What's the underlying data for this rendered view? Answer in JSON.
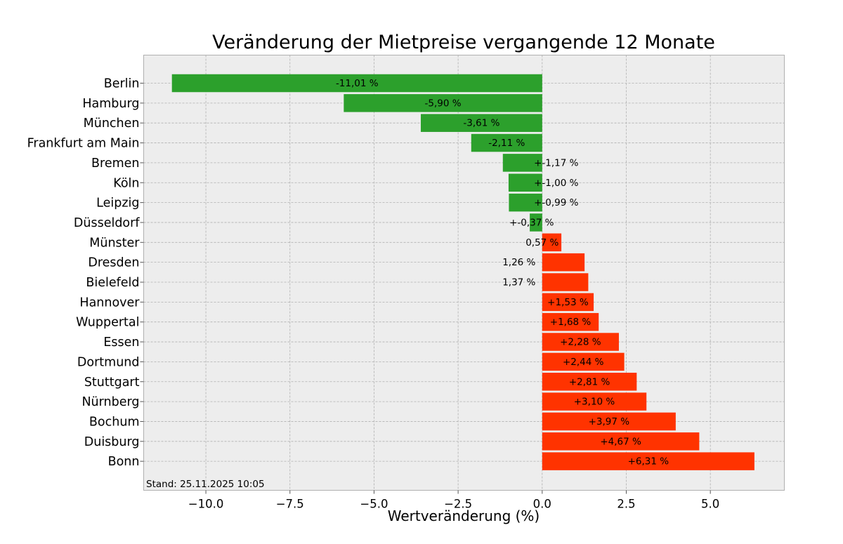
{
  "chart_data": {
    "type": "bar",
    "orientation": "horizontal",
    "title": "Veränderung der Mietpreise vergangende 12 Monate",
    "xlabel": "Wertveränderung (%)",
    "ylabel": "",
    "xlim": [
      -11.85,
      7.2
    ],
    "xticks": [
      -10.0,
      -7.5,
      -5.0,
      -2.5,
      0.0,
      2.5,
      5.0
    ],
    "xtick_labels": [
      "−10.0",
      "−7.5",
      "−5.0",
      "−2.5",
      "0.0",
      "2.5",
      "5.0"
    ],
    "grid": true,
    "categories": [
      "Berlin",
      "Hamburg",
      "München",
      "Frankfurt am Main",
      "Bremen",
      "Köln",
      "Leipzig",
      "Düsseldorf",
      "Münster",
      "Dresden",
      "Bielefeld",
      "Hannover",
      "Wuppertal",
      "Essen",
      "Dortmund",
      "Stuttgart",
      "Nürnberg",
      "Bochum",
      "Duisburg",
      "Bonn"
    ],
    "values": [
      -11.01,
      -5.9,
      -3.61,
      -2.11,
      -1.17,
      -1.0,
      -0.99,
      -0.37,
      0.57,
      1.26,
      1.37,
      1.53,
      1.68,
      2.28,
      2.44,
      2.81,
      3.1,
      3.97,
      4.67,
      6.31
    ],
    "data_labels": [
      "-11,01 %",
      "-5,90 %",
      "-3,61 %",
      "-2,11 %",
      "+-1,17 %",
      "+-1,00 %",
      "+-0,99 %",
      "+-0,37 %",
      "0,57 %",
      "1,26 %",
      "1,37 %",
      "+1,53 %",
      "+1,68 %",
      "+2,28 %",
      "+2,44 %",
      "+2,81 %",
      "+3,10 %",
      "+3,97 %",
      "+4,67 %",
      "+6,31 %"
    ],
    "colors": {
      "negative": "#2ca02c",
      "positive": "#ff3300",
      "plot_background": "#ededed",
      "grid": "#b0b0b0"
    },
    "annotation": "Stand: 25.11.2025 10:05"
  }
}
